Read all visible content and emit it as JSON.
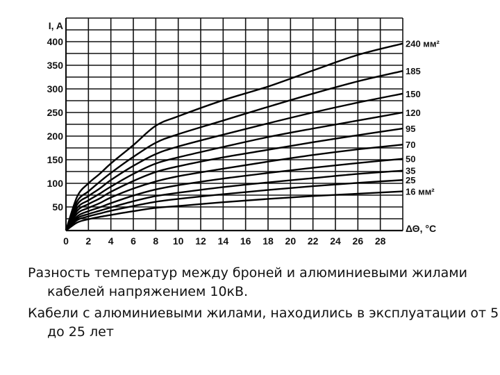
{
  "chart_data": {
    "type": "line",
    "ylabel": "I, A",
    "xlabel": "ΔΘ, °C",
    "xlim": [
      0,
      30
    ],
    "ylim": [
      0,
      450
    ],
    "x_ticks": [
      "0",
      "2",
      "4",
      "6",
      "8",
      "10",
      "12",
      "14",
      "16",
      "18",
      "20",
      "22",
      "24",
      "26",
      "28"
    ],
    "y_ticks": [
      "50",
      "100",
      "150",
      "200",
      "250",
      "300",
      "350",
      "400"
    ],
    "grid": true,
    "x": [
      0,
      1,
      2,
      3,
      4,
      6,
      8,
      10,
      14,
      18,
      22,
      26,
      30
    ],
    "series": [
      {
        "name": "240 мм²",
        "values": [
          0,
          72,
          100,
          120,
          142,
          181,
          222,
          242,
          276,
          305,
          339,
          372,
          396
        ]
      },
      {
        "name": "185",
        "values": [
          0,
          62,
          83,
          103,
          122,
          156,
          186,
          204,
          233,
          262,
          290,
          316,
          338
        ]
      },
      {
        "name": "150",
        "values": [
          0,
          55,
          73,
          89,
          107,
          137,
          162,
          178,
          203,
          227,
          250,
          271,
          290
        ]
      },
      {
        "name": "120",
        "values": [
          0,
          48,
          64,
          78,
          93,
          120,
          142,
          155,
          177,
          198,
          216,
          233,
          250
        ]
      },
      {
        "name": "95",
        "values": [
          0,
          42,
          56,
          68,
          82,
          105,
          124,
          136,
          155,
          171,
          187,
          202,
          216
        ]
      },
      {
        "name": "70",
        "values": [
          0,
          36,
          48,
          58,
          70,
          89,
          104,
          115,
          131,
          146,
          160,
          172,
          182
        ]
      },
      {
        "name": "50",
        "values": [
          0,
          30,
          41,
          49,
          58,
          74,
          87,
          96,
          110,
          122,
          133,
          143,
          152
        ]
      },
      {
        "name": "35",
        "values": [
          0,
          26,
          35,
          42,
          49,
          62,
          73,
          80,
          92,
          102,
          111,
          120,
          127
        ]
      },
      {
        "name": "25",
        "values": [
          0,
          22,
          30,
          36,
          42,
          52,
          61,
          67,
          77,
          86,
          94,
          101,
          107
        ]
      },
      {
        "name": "16 мм²",
        "values": [
          0,
          17,
          24,
          29,
          33,
          41,
          48,
          52,
          60,
          67,
          73,
          78,
          83
        ]
      }
    ]
  },
  "caption": {
    "line1": "Разность температур между броней и алюминиевыми жилами кабелей напряжением 10кВ.",
    "line2": "Кабели с алюминиевыми жилами, находились в эксплуатации от 5 до 25 лет"
  }
}
